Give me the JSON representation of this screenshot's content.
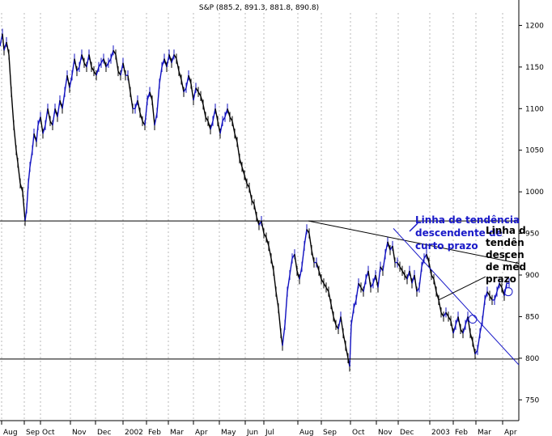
{
  "chart_data": {
    "type": "line",
    "title": "S&P (885.2, 891.3, 881.8, 890.8)",
    "y_ticks": [
      750,
      800,
      850,
      900,
      950,
      1000,
      1050,
      1100,
      1150,
      1200
    ],
    "ylim": [
      725,
      1215
    ],
    "x_ticks": [
      "Aug",
      "Sep",
      "Oct",
      "Nov",
      "Dec",
      "2002",
      "Feb",
      "Mar",
      "Apr",
      "May",
      "Jun",
      "Jul",
      "Aug",
      "Sep",
      "Oct",
      "Nov",
      "Dec",
      "2003",
      "Feb",
      "Mar",
      "Apr"
    ],
    "series": [
      {
        "values": [
          [
            0,
            1175
          ],
          [
            3,
            1190
          ],
          [
            5,
            1170
          ],
          [
            8,
            1180
          ],
          [
            11,
            1165
          ],
          [
            14,
            1120
          ],
          [
            17,
            1080
          ],
          [
            20,
            1050
          ],
          [
            22,
            1035
          ],
          [
            25,
            1010
          ],
          [
            28,
            1000
          ],
          [
            31,
            965
          ],
          [
            33,
            980
          ],
          [
            35,
            1010
          ],
          [
            37,
            1030
          ],
          [
            40,
            1050
          ],
          [
            42,
            1070
          ],
          [
            45,
            1060
          ],
          [
            47,
            1080
          ],
          [
            50,
            1090
          ],
          [
            53,
            1070
          ],
          [
            56,
            1080
          ],
          [
            59,
            1100
          ],
          [
            62,
            1085
          ],
          [
            65,
            1080
          ],
          [
            68,
            1100
          ],
          [
            71,
            1090
          ],
          [
            74,
            1110
          ],
          [
            77,
            1100
          ],
          [
            80,
            1120
          ],
          [
            83,
            1140
          ],
          [
            86,
            1125
          ],
          [
            89,
            1140
          ],
          [
            92,
            1160
          ],
          [
            95,
            1145
          ],
          [
            98,
            1150
          ],
          [
            101,
            1165
          ],
          [
            104,
            1155
          ],
          [
            107,
            1150
          ],
          [
            110,
            1165
          ],
          [
            113,
            1150
          ],
          [
            116,
            1145
          ],
          [
            119,
            1140
          ],
          [
            122,
            1150
          ],
          [
            125,
            1155
          ],
          [
            128,
            1160
          ],
          [
            131,
            1150
          ],
          [
            134,
            1155
          ],
          [
            137,
            1160
          ],
          [
            140,
            1170
          ],
          [
            143,
            1165
          ],
          [
            146,
            1145
          ],
          [
            149,
            1140
          ],
          [
            152,
            1155
          ],
          [
            155,
            1140
          ],
          [
            158,
            1140
          ],
          [
            161,
            1120
          ],
          [
            164,
            1100
          ],
          [
            167,
            1100
          ],
          [
            170,
            1110
          ],
          [
            173,
            1095
          ],
          [
            176,
            1085
          ],
          [
            179,
            1080
          ],
          [
            182,
            1110
          ],
          [
            185,
            1120
          ],
          [
            188,
            1110
          ],
          [
            191,
            1080
          ],
          [
            194,
            1095
          ],
          [
            197,
            1130
          ],
          [
            200,
            1150
          ],
          [
            203,
            1160
          ],
          [
            206,
            1150
          ],
          [
            209,
            1165
          ],
          [
            212,
            1155
          ],
          [
            215,
            1165
          ],
          [
            218,
            1160
          ],
          [
            221,
            1145
          ],
          [
            224,
            1135
          ],
          [
            227,
            1120
          ],
          [
            230,
            1125
          ],
          [
            233,
            1140
          ],
          [
            236,
            1130
          ],
          [
            239,
            1110
          ],
          [
            242,
            1125
          ],
          [
            245,
            1120
          ],
          [
            248,
            1115
          ],
          [
            251,
            1105
          ],
          [
            254,
            1090
          ],
          [
            257,
            1085
          ],
          [
            260,
            1075
          ],
          [
            263,
            1085
          ],
          [
            266,
            1100
          ],
          [
            269,
            1085
          ],
          [
            272,
            1070
          ],
          [
            275,
            1085
          ],
          [
            278,
            1090
          ],
          [
            281,
            1100
          ],
          [
            284,
            1090
          ],
          [
            287,
            1085
          ],
          [
            290,
            1070
          ],
          [
            293,
            1060
          ],
          [
            296,
            1040
          ],
          [
            299,
            1030
          ],
          [
            302,
            1020
          ],
          [
            305,
            1010
          ],
          [
            308,
            1005
          ],
          [
            311,
            990
          ],
          [
            314,
            985
          ],
          [
            317,
            970
          ],
          [
            320,
            960
          ],
          [
            323,
            965
          ],
          [
            326,
            950
          ],
          [
            329,
            945
          ],
          [
            332,
            935
          ],
          [
            335,
            920
          ],
          [
            338,
            905
          ],
          [
            341,
            880
          ],
          [
            344,
            860
          ],
          [
            347,
            830
          ],
          [
            349,
            815
          ],
          [
            352,
            840
          ],
          [
            355,
            880
          ],
          [
            358,
            900
          ],
          [
            361,
            920
          ],
          [
            364,
            925
          ],
          [
            367,
            905
          ],
          [
            370,
            895
          ],
          [
            373,
            910
          ],
          [
            376,
            935
          ],
          [
            379,
            955
          ],
          [
            382,
            950
          ],
          [
            385,
            930
          ],
          [
            388,
            915
          ],
          [
            391,
            915
          ],
          [
            394,
            905
          ],
          [
            397,
            895
          ],
          [
            400,
            890
          ],
          [
            403,
            885
          ],
          [
            406,
            880
          ],
          [
            409,
            865
          ],
          [
            412,
            850
          ],
          [
            415,
            840
          ],
          [
            418,
            835
          ],
          [
            421,
            850
          ],
          [
            424,
            830
          ],
          [
            427,
            815
          ],
          [
            430,
            800
          ],
          [
            432,
            790
          ],
          [
            434,
            840
          ],
          [
            437,
            860
          ],
          [
            440,
            870
          ],
          [
            443,
            890
          ],
          [
            446,
            885
          ],
          [
            449,
            880
          ],
          [
            452,
            895
          ],
          [
            455,
            905
          ],
          [
            458,
            885
          ],
          [
            461,
            890
          ],
          [
            464,
            900
          ],
          [
            467,
            885
          ],
          [
            470,
            910
          ],
          [
            473,
            905
          ],
          [
            476,
            925
          ],
          [
            479,
            940
          ],
          [
            482,
            930
          ],
          [
            485,
            935
          ],
          [
            488,
            915
          ],
          [
            491,
            915
          ],
          [
            494,
            910
          ],
          [
            497,
            905
          ],
          [
            500,
            900
          ],
          [
            503,
            895
          ],
          [
            506,
            905
          ],
          [
            509,
            890
          ],
          [
            512,
            900
          ],
          [
            515,
            880
          ],
          [
            518,
            885
          ],
          [
            521,
            910
          ],
          [
            524,
            920
          ],
          [
            527,
            925
          ],
          [
            530,
            915
          ],
          [
            533,
            900
          ],
          [
            536,
            895
          ],
          [
            539,
            880
          ],
          [
            542,
            870
          ],
          [
            545,
            855
          ],
          [
            548,
            850
          ],
          [
            551,
            855
          ],
          [
            554,
            850
          ],
          [
            557,
            845
          ],
          [
            560,
            830
          ],
          [
            563,
            840
          ],
          [
            566,
            850
          ],
          [
            569,
            835
          ],
          [
            572,
            830
          ],
          [
            575,
            840
          ],
          [
            578,
            850
          ],
          [
            581,
            830
          ],
          [
            584,
            820
          ],
          [
            587,
            805
          ],
          [
            590,
            810
          ],
          [
            593,
            830
          ],
          [
            596,
            845
          ],
          [
            599,
            870
          ],
          [
            602,
            880
          ],
          [
            605,
            875
          ],
          [
            608,
            870
          ],
          [
            611,
            870
          ],
          [
            614,
            880
          ],
          [
            617,
            890
          ],
          [
            620,
            885
          ],
          [
            623,
            875
          ],
          [
            626,
            890
          ],
          [
            629,
            890
          ]
        ]
      }
    ],
    "horizontal_lines": [
      965,
      799
    ],
    "trendlines": [
      "black",
      "blue"
    ],
    "annotations": [
      {
        "text": "Linha de tendência descendente de curto prazo",
        "lines": [
          "Linha de tendência",
          "descendente de",
          "curto prazo"
        ],
        "color": "#1818c8"
      },
      {
        "text": "Linha de tendência descendente de médio prazo",
        "lines": [
          "Linha d",
          "tendên",
          "descen",
          "de méd",
          "prazo"
        ],
        "color": "#000000"
      }
    ],
    "colors": {
      "line": "#000000",
      "highlight": "#1010c0",
      "bg": "#ffffff"
    }
  }
}
